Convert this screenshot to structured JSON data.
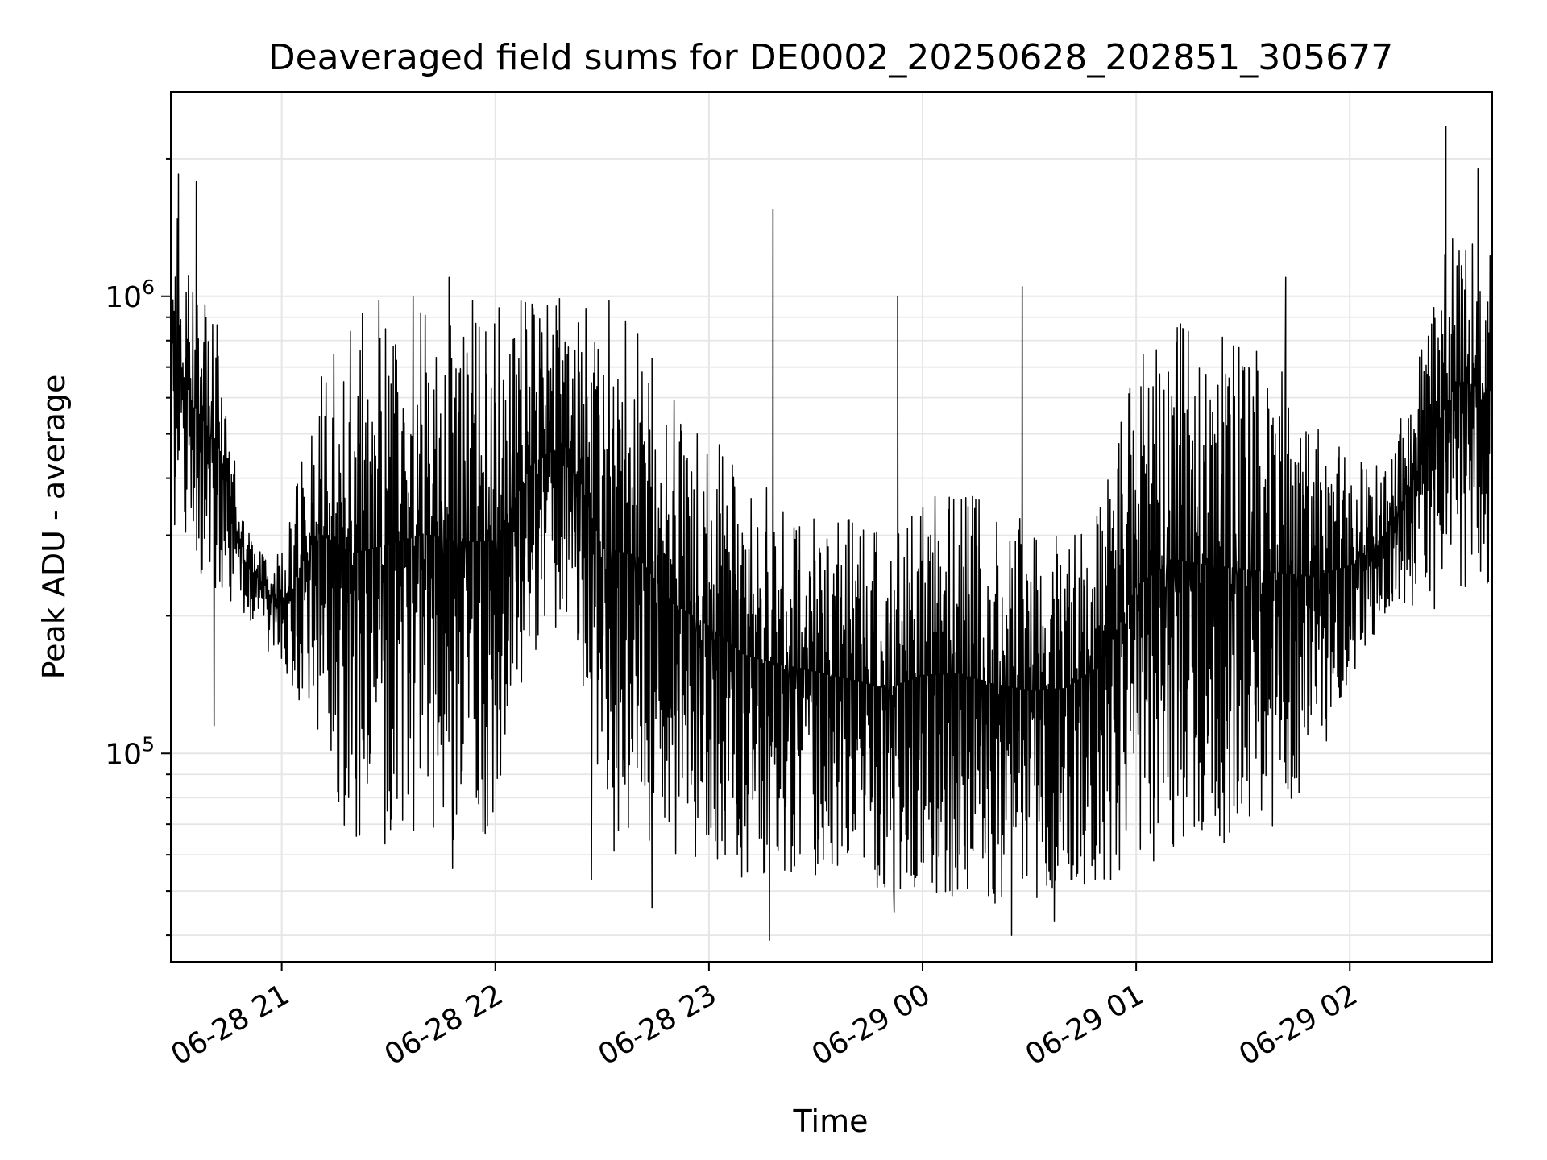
{
  "chart_data": {
    "type": "line",
    "title": "Deaveraged field sums for DE0002_20250628_202851_305677",
    "xlabel": "Time",
    "ylabel": "Peak ADU - average",
    "x_axis": {
      "kind": "datetime",
      "range": [
        "2025-06-28 20:28:51",
        "2025-06-29 02:40:00"
      ],
      "ticks": [
        "2025-06-28 21:00",
        "2025-06-28 22:00",
        "2025-06-28 23:00",
        "2025-06-29 00:00",
        "2025-06-29 01:00",
        "2025-06-29 02:00"
      ],
      "tick_labels": [
        "06-28 21",
        "06-28 22",
        "06-28 23",
        "06-29 00",
        "06-29 01",
        "06-29 02"
      ]
    },
    "y_axis": {
      "scale": "log",
      "range": [
        35000,
        2800000
      ],
      "major_ticks": [
        100000,
        1000000
      ],
      "major_tick_labels": [
        {
          "base": "10",
          "exp": "5"
        },
        {
          "base": "10",
          "exp": "6"
        }
      ]
    },
    "grid": true,
    "legend": "none",
    "series": [
      {
        "color": "#000000",
        "envelope": [
          {
            "t": "2025-06-28 20:29",
            "high": 1800000,
            "low": 300000
          },
          {
            "t": "2025-06-28 20:35",
            "high": 1200000,
            "low": 240000
          },
          {
            "t": "2025-06-28 20:42",
            "high": 900000,
            "low": 220000
          },
          {
            "t": "2025-06-28 20:50",
            "high": 320000,
            "low": 200000
          },
          {
            "t": "2025-06-28 21:00",
            "high": 280000,
            "low": 150000
          },
          {
            "t": "2025-06-28 21:10",
            "high": 700000,
            "low": 110000
          },
          {
            "t": "2025-06-28 21:20",
            "high": 950000,
            "low": 60000
          },
          {
            "t": "2025-06-28 21:30",
            "high": 1000000,
            "low": 62000
          },
          {
            "t": "2025-06-28 21:40",
            "high": 1000000,
            "low": 70000
          },
          {
            "t": "2025-06-28 21:50",
            "high": 1050000,
            "low": 60000
          },
          {
            "t": "2025-06-28 22:00",
            "high": 1000000,
            "low": 65000
          },
          {
            "t": "2025-06-28 22:10",
            "high": 1000000,
            "low": 150000
          },
          {
            "t": "2025-06-28 22:20",
            "high": 1000000,
            "low": 200000
          },
          {
            "t": "2025-06-28 22:30",
            "high": 1000000,
            "low": 60000
          },
          {
            "t": "2025-06-28 22:40",
            "high": 900000,
            "low": 62000
          },
          {
            "t": "2025-06-28 22:50",
            "high": 600000,
            "low": 60000
          },
          {
            "t": "2025-06-28 23:00",
            "high": 500000,
            "low": 58000
          },
          {
            "t": "2025-06-28 23:10",
            "high": 420000,
            "low": 52000
          },
          {
            "t": "2025-06-28 23:20",
            "high": 380000,
            "low": 53000
          },
          {
            "t": "2025-06-28 23:30",
            "high": 350000,
            "low": 54000
          },
          {
            "t": "2025-06-28 23:40",
            "high": 330000,
            "low": 53000
          },
          {
            "t": "2025-06-28 23:50",
            "high": 320000,
            "low": 50000
          },
          {
            "t": "2025-06-29 00:00",
            "high": 360000,
            "low": 50000
          },
          {
            "t": "2025-06-29 00:10",
            "high": 380000,
            "low": 48000
          },
          {
            "t": "2025-06-29 00:20",
            "high": 350000,
            "low": 47000
          },
          {
            "t": "2025-06-29 00:30",
            "high": 330000,
            "low": 47000
          },
          {
            "t": "2025-06-29 00:40",
            "high": 320000,
            "low": 50000
          },
          {
            "t": "2025-06-29 00:50",
            "high": 380000,
            "low": 52000
          },
          {
            "t": "2025-06-29 01:00",
            "high": 750000,
            "low": 55000
          },
          {
            "t": "2025-06-29 01:10",
            "high": 900000,
            "low": 60000
          },
          {
            "t": "2025-06-29 01:20",
            "high": 850000,
            "low": 60000
          },
          {
            "t": "2025-06-29 01:30",
            "high": 800000,
            "low": 62000
          },
          {
            "t": "2025-06-29 01:40",
            "high": 700000,
            "low": 70000
          },
          {
            "t": "2025-06-29 01:50",
            "high": 550000,
            "low": 90000
          },
          {
            "t": "2025-06-29 02:00",
            "high": 450000,
            "low": 130000
          },
          {
            "t": "2025-06-29 02:10",
            "high": 420000,
            "low": 200000
          },
          {
            "t": "2025-06-29 02:20",
            "high": 800000,
            "low": 200000
          },
          {
            "t": "2025-06-29 02:30",
            "high": 1600000,
            "low": 220000
          },
          {
            "t": "2025-06-29 02:40",
            "high": 1400000,
            "low": 230000
          }
        ],
        "spikes": [
          {
            "t": "2025-06-28 20:31",
            "value": 1850000
          },
          {
            "t": "2025-06-28 20:36",
            "value": 1780000
          },
          {
            "t": "2025-06-28 20:41",
            "value": 115000
          },
          {
            "t": "2025-06-28 21:16",
            "value": 88000
          },
          {
            "t": "2025-06-28 21:47",
            "value": 1100000
          },
          {
            "t": "2025-06-28 21:48",
            "value": 56000
          },
          {
            "t": "2025-06-28 22:27",
            "value": 53000
          },
          {
            "t": "2025-06-28 22:44",
            "value": 46000
          },
          {
            "t": "2025-06-28 23:17",
            "value": 39000
          },
          {
            "t": "2025-06-28 23:18",
            "value": 1550000
          },
          {
            "t": "2025-06-28 23:52",
            "value": 45000
          },
          {
            "t": "2025-06-28 23:53",
            "value": 1000000
          },
          {
            "t": "2025-06-29 00:25",
            "value": 40000
          },
          {
            "t": "2025-06-29 00:28",
            "value": 1050000
          },
          {
            "t": "2025-06-29 00:37",
            "value": 43000
          },
          {
            "t": "2025-06-29 01:42",
            "value": 1100000
          },
          {
            "t": "2025-06-29 02:27",
            "value": 2350000
          },
          {
            "t": "2025-06-29 02:36",
            "value": 1900000
          }
        ]
      }
    ]
  }
}
